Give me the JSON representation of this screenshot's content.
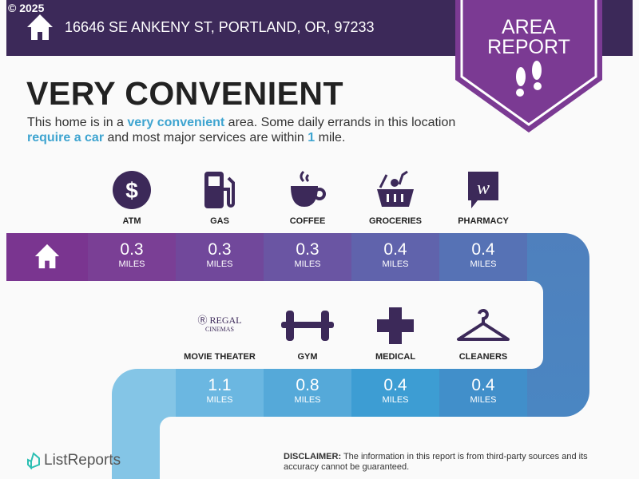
{
  "copyright": "© 2025",
  "address": "16646 SE ANKENY ST, PORTLAND, OR, 97233",
  "badge": {
    "line1": "AREA",
    "line2": "REPORT",
    "icon": "footprints-icon"
  },
  "headline": "VERY CONVENIENT",
  "description": {
    "p1": "This home is in a ",
    "h1": "very convenient",
    "p2": " area. Some daily errands in this location ",
    "h2": "require a car",
    "p3": " and most major services are within ",
    "h3": "1",
    "p4": " mile."
  },
  "row1": [
    {
      "label": "ATM",
      "icon": "dollar-icon",
      "value": "0.3",
      "unit": "MILES"
    },
    {
      "label": "GAS",
      "icon": "gas-pump-icon",
      "value": "0.3",
      "unit": "MILES"
    },
    {
      "label": "COFFEE",
      "icon": "coffee-cup-icon",
      "value": "0.3",
      "unit": "MILES"
    },
    {
      "label": "GROCERIES",
      "icon": "grocery-basket-icon",
      "value": "0.4",
      "unit": "MILES"
    },
    {
      "label": "PHARMACY",
      "icon": "walgreens-icon",
      "value": "0.4",
      "unit": "MILES"
    }
  ],
  "row2": [
    {
      "label": "MOVIE THEATER",
      "icon": "regal-cinemas-logo",
      "logo_text": "REGAL CINEMAS",
      "value": "1.1",
      "unit": "MILES"
    },
    {
      "label": "GYM",
      "icon": "dumbbell-icon",
      "value": "0.8",
      "unit": "MILES"
    },
    {
      "label": "MEDICAL",
      "icon": "medical-cross-icon",
      "value": "0.4",
      "unit": "MILES"
    },
    {
      "label": "CLEANERS",
      "icon": "hanger-icon",
      "value": "0.4",
      "unit": "MILES"
    }
  ],
  "brand": "ListReports",
  "disclaimer": {
    "label": "DISCLAIMER:",
    "text": " The information in this report is from third-party sources and its accuracy cannot be guaranteed."
  },
  "colors": {
    "header": "#3c2959",
    "badge": "#7b3a93",
    "icon": "#3c2959",
    "highlight": "#3ea4d0"
  }
}
